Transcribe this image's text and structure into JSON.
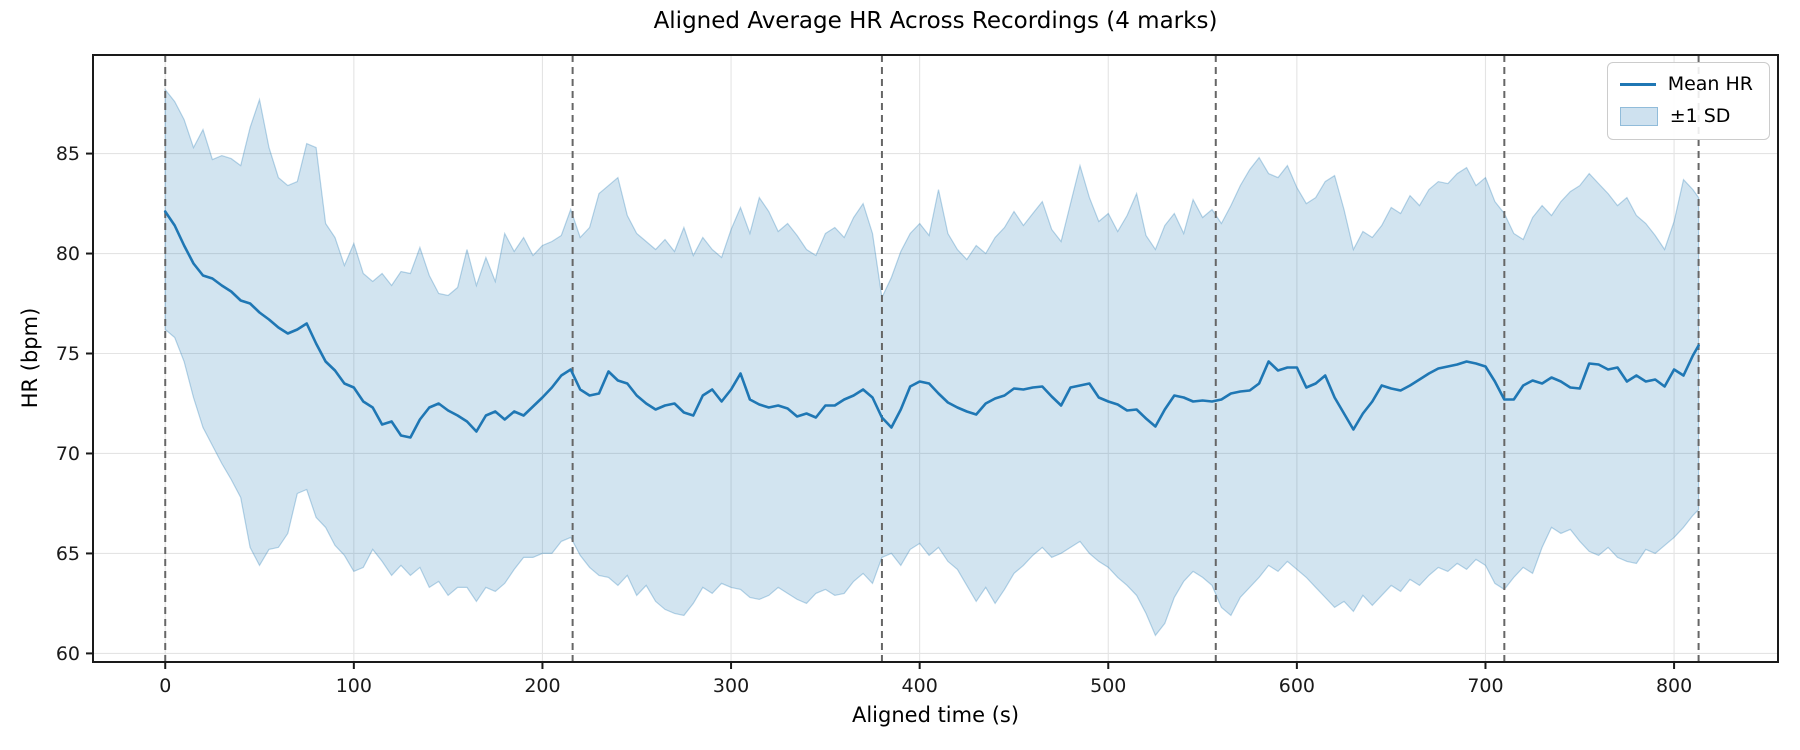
{
  "chart_data": {
    "type": "line",
    "title": "Aligned Average HR Across Recordings (4 marks)",
    "xlabel": "Aligned time (s)",
    "ylabel": "HR (bpm)",
    "x_ticks": [
      0,
      100,
      200,
      300,
      400,
      500,
      600,
      700,
      800
    ],
    "y_ticks": [
      60,
      65,
      70,
      75,
      80,
      85
    ],
    "xlim": [
      -38.3,
      855.1
    ],
    "ylim": [
      59.57,
      89.93
    ],
    "grid": true,
    "legend": {
      "position": "upper right",
      "entries": [
        {
          "label": "Mean HR",
          "type": "line",
          "color": "#1f77b4"
        },
        {
          "label": "±1 SD",
          "type": "patch",
          "color": "#1f77b4",
          "alpha": 0.2
        }
      ]
    },
    "mark_vlines_s": [
      0,
      216,
      380,
      557,
      710,
      813
    ],
    "colors": {
      "mean_line": "#1f77b4",
      "band_fill": "#1f77b4",
      "band_alpha": 0.2,
      "vline": "#666666",
      "grid": "#e4e4e4",
      "spine": "#1a1a1a"
    },
    "series": {
      "t": [
        0,
        5,
        10,
        15,
        20,
        25,
        30,
        35,
        40,
        45,
        50,
        55,
        60,
        65,
        70,
        75,
        80,
        85,
        90,
        95,
        100,
        105,
        110,
        115,
        120,
        125,
        130,
        135,
        140,
        145,
        150,
        155,
        160,
        165,
        170,
        175,
        180,
        185,
        190,
        195,
        200,
        205,
        210,
        215,
        220,
        225,
        230,
        235,
        240,
        245,
        250,
        255,
        260,
        265,
        270,
        275,
        280,
        285,
        290,
        295,
        300,
        305,
        310,
        315,
        320,
        325,
        330,
        335,
        340,
        345,
        350,
        355,
        360,
        365,
        370,
        375,
        380,
        385,
        390,
        395,
        400,
        405,
        410,
        415,
        420,
        425,
        430,
        435,
        440,
        445,
        450,
        455,
        460,
        465,
        470,
        475,
        480,
        485,
        490,
        495,
        500,
        505,
        510,
        515,
        520,
        525,
        530,
        535,
        540,
        545,
        550,
        555,
        560,
        565,
        570,
        575,
        580,
        585,
        590,
        595,
        600,
        605,
        610,
        615,
        620,
        625,
        630,
        635,
        640,
        645,
        650,
        655,
        660,
        665,
        670,
        675,
        680,
        685,
        690,
        695,
        700,
        705,
        710,
        715,
        720,
        725,
        730,
        735,
        740,
        745,
        750,
        755,
        760,
        765,
        770,
        775,
        780,
        785,
        790,
        795,
        800,
        805,
        810,
        813
      ],
      "mean_hr": [
        82.1,
        81.4,
        80.4,
        79.5,
        78.9,
        78.75,
        78.4,
        78.1,
        77.65,
        77.5,
        77.05,
        76.7,
        76.3,
        76.0,
        76.2,
        76.5,
        75.5,
        74.6,
        74.15,
        73.5,
        73.3,
        72.6,
        72.3,
        71.45,
        71.6,
        70.9,
        70.8,
        71.7,
        72.3,
        72.5,
        72.15,
        71.9,
        71.6,
        71.1,
        71.9,
        72.1,
        71.7,
        72.1,
        71.9,
        72.35,
        72.8,
        73.3,
        73.9,
        74.2,
        73.2,
        72.9,
        73.0,
        74.1,
        73.65,
        73.5,
        72.9,
        72.5,
        72.2,
        72.4,
        72.5,
        72.05,
        71.9,
        72.9,
        73.2,
        72.6,
        73.2,
        74.0,
        72.7,
        72.45,
        72.3,
        72.4,
        72.25,
        71.85,
        72.0,
        71.8,
        72.4,
        72.4,
        72.7,
        72.9,
        73.2,
        72.8,
        71.8,
        71.3,
        72.2,
        73.35,
        73.6,
        73.5,
        73.0,
        72.55,
        72.3,
        72.1,
        71.95,
        72.5,
        72.75,
        72.9,
        73.25,
        73.2,
        73.3,
        73.35,
        72.85,
        72.4,
        73.3,
        73.4,
        73.5,
        72.8,
        72.6,
        72.45,
        72.15,
        72.2,
        71.75,
        71.35,
        72.2,
        72.9,
        72.8,
        72.6,
        72.65,
        72.6,
        72.7,
        73.0,
        73.1,
        73.15,
        73.5,
        74.6,
        74.15,
        74.3,
        74.3,
        73.3,
        73.5,
        73.9,
        72.8,
        72.0,
        71.2,
        72.0,
        72.6,
        73.4,
        73.25,
        73.15,
        73.4,
        73.7,
        74.0,
        74.25,
        74.35,
        74.45,
        74.6,
        74.5,
        74.35,
        73.6,
        72.7,
        72.7,
        73.4,
        73.65,
        73.5,
        73.8,
        73.6,
        73.3,
        73.25,
        74.5,
        74.45,
        74.2,
        74.3,
        73.6,
        73.9,
        73.6,
        73.7,
        73.35,
        74.2,
        73.9,
        74.9,
        75.4
      ],
      "upper_1sd": [
        88.2,
        87.6,
        86.7,
        85.3,
        86.2,
        84.7,
        84.9,
        84.75,
        84.4,
        86.3,
        87.7,
        85.3,
        83.8,
        83.4,
        83.6,
        85.5,
        85.3,
        81.5,
        80.8,
        79.4,
        80.5,
        79.0,
        78.6,
        79.0,
        78.4,
        79.1,
        79.0,
        80.3,
        78.9,
        78.0,
        77.9,
        78.3,
        80.2,
        78.4,
        79.8,
        78.6,
        81.0,
        80.1,
        80.8,
        79.9,
        80.4,
        80.6,
        80.9,
        82.2,
        80.8,
        81.3,
        83.0,
        83.4,
        83.8,
        81.9,
        81.0,
        80.6,
        80.2,
        80.7,
        80.1,
        81.3,
        79.9,
        80.8,
        80.2,
        79.8,
        81.2,
        82.3,
        81.0,
        82.8,
        82.1,
        81.1,
        81.5,
        80.9,
        80.2,
        79.9,
        81.0,
        81.3,
        80.8,
        81.8,
        82.5,
        81.0,
        77.8,
        78.8,
        80.1,
        81.0,
        81.5,
        80.9,
        83.2,
        81.0,
        80.2,
        79.7,
        80.4,
        80.0,
        80.8,
        81.3,
        82.1,
        81.4,
        82.0,
        82.6,
        81.2,
        80.6,
        82.5,
        84.4,
        82.8,
        81.6,
        82.0,
        81.1,
        81.9,
        83.0,
        80.9,
        80.2,
        81.4,
        82.0,
        81.0,
        82.7,
        81.8,
        82.2,
        81.5,
        82.4,
        83.4,
        84.2,
        84.8,
        84.0,
        83.8,
        84.4,
        83.3,
        82.5,
        82.8,
        83.6,
        83.9,
        82.2,
        80.2,
        81.1,
        80.8,
        81.4,
        82.3,
        82.0,
        82.9,
        82.4,
        83.2,
        83.6,
        83.5,
        84.0,
        84.3,
        83.4,
        83.8,
        82.6,
        82.0,
        81.0,
        80.7,
        81.8,
        82.4,
        81.9,
        82.6,
        83.1,
        83.4,
        84.0,
        83.5,
        83.0,
        82.4,
        82.8,
        81.9,
        81.5,
        80.9,
        80.2,
        81.6,
        83.7,
        83.2,
        82.8
      ],
      "lower_1sd": [
        76.2,
        75.8,
        74.6,
        72.8,
        71.3,
        70.4,
        69.5,
        68.7,
        67.8,
        65.3,
        64.4,
        65.2,
        65.3,
        66.0,
        68.0,
        68.2,
        66.8,
        66.3,
        65.4,
        64.9,
        64.1,
        64.3,
        65.2,
        64.6,
        63.9,
        64.4,
        63.9,
        64.3,
        63.3,
        63.6,
        62.9,
        63.3,
        63.3,
        62.6,
        63.3,
        63.1,
        63.5,
        64.2,
        64.8,
        64.8,
        65.0,
        65.0,
        65.6,
        65.8,
        64.9,
        64.3,
        63.9,
        63.8,
        63.4,
        63.9,
        62.9,
        63.4,
        62.6,
        62.2,
        62.0,
        61.9,
        62.5,
        63.3,
        63.0,
        63.5,
        63.3,
        63.2,
        62.8,
        62.7,
        62.9,
        63.3,
        63.0,
        62.7,
        62.5,
        63.0,
        63.2,
        62.9,
        63.0,
        63.6,
        64.0,
        63.5,
        64.8,
        65.0,
        64.4,
        65.2,
        65.5,
        64.9,
        65.3,
        64.6,
        64.2,
        63.4,
        62.6,
        63.3,
        62.5,
        63.2,
        64.0,
        64.4,
        64.9,
        65.3,
        64.8,
        65.0,
        65.3,
        65.6,
        65.0,
        64.6,
        64.3,
        63.8,
        63.4,
        62.9,
        62.0,
        60.9,
        61.5,
        62.8,
        63.6,
        64.1,
        63.8,
        63.4,
        62.3,
        61.9,
        62.8,
        63.3,
        63.8,
        64.4,
        64.1,
        64.6,
        64.2,
        63.8,
        63.3,
        62.8,
        62.3,
        62.6,
        62.1,
        62.9,
        62.4,
        62.9,
        63.4,
        63.1,
        63.7,
        63.4,
        63.9,
        64.3,
        64.1,
        64.5,
        64.2,
        64.7,
        64.4,
        63.5,
        63.2,
        63.8,
        64.3,
        64.0,
        65.3,
        66.3,
        66.0,
        66.2,
        65.6,
        65.1,
        64.9,
        65.3,
        64.8,
        64.6,
        64.5,
        65.2,
        65.0,
        65.4,
        65.8,
        66.3,
        66.9,
        67.2
      ]
    }
  }
}
